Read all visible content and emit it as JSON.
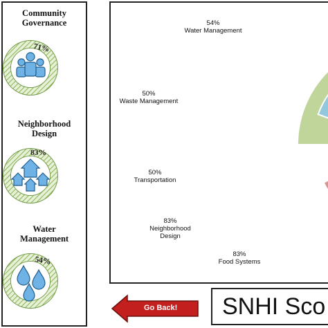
{
  "sidebar": {
    "items": [
      {
        "title_lines": [
          "Community",
          "Governance"
        ],
        "percent": "71%",
        "value": 71,
        "icon": "people-icon"
      },
      {
        "title_lines": [
          "Neighborhood",
          "Design"
        ],
        "percent": "83%",
        "value": 83,
        "icon": "houses-icon"
      },
      {
        "title_lines": [
          "Water",
          "Management"
        ],
        "percent": "54%",
        "value": 54,
        "icon": "water-drops-icon"
      }
    ]
  },
  "chart_data": {
    "type": "polar-area",
    "labels": [
      {
        "percent": "54%",
        "name": "Water Management"
      },
      {
        "percent": "50%",
        "name": "Waste Management"
      },
      {
        "percent": "50%",
        "name": "Transportation"
      },
      {
        "percent": "83%",
        "name_lines": [
          "Neighborhood",
          "Design"
        ]
      },
      {
        "percent": "83%",
        "name": "Food Systems"
      }
    ],
    "values": [
      54,
      50,
      50,
      83,
      83
    ],
    "colors": {
      "green": "#bfd59a",
      "blue": "#93c8dc",
      "red": "#d79592"
    }
  },
  "footer": {
    "go_back_label": "Go Back!",
    "score_title": "SNHI Sco"
  },
  "colors": {
    "ring_green": "#8db85a",
    "icon_blue": "#6fb2e6",
    "arrow_red": "#c41f1f"
  }
}
